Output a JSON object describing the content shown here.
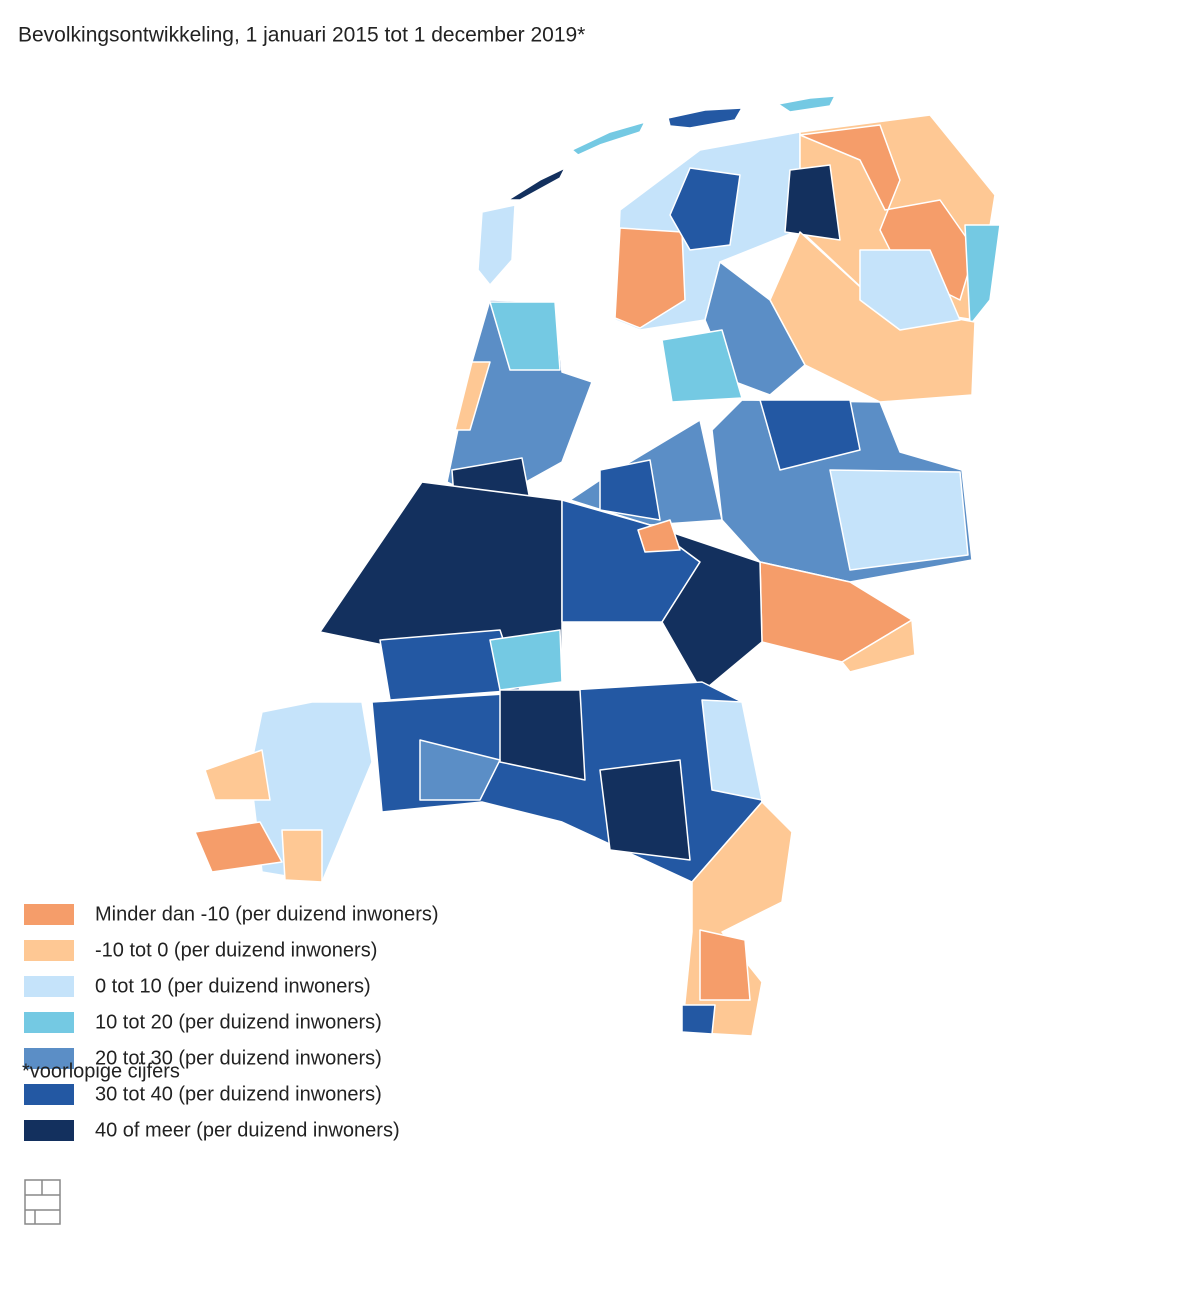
{
  "title": "Bevolkingsontwikkeling, 1 januari 2015 tot 1 december 2019*",
  "legend": {
    "items": [
      {
        "label": "Minder dan -10 (per duizend inwoners)",
        "color": "#f59d6a"
      },
      {
        "label": "-10 tot 0 (per duizend inwoners)",
        "color": "#fec894"
      },
      {
        "label": "0 tot 10 (per duizend inwoners)",
        "color": "#c5e3fa"
      },
      {
        "label": "10 tot 20 (per duizend inwoners)",
        "color": "#74c9e3"
      },
      {
        "label": "20 tot 30 (per duizend inwoners)",
        "color": "#5b8ec6"
      },
      {
        "label": "30 tot 40 (per duizend inwoners)",
        "color": "#2358a3"
      },
      {
        "label": "40 of meer (per duizend inwoners)",
        "color": "#13305e"
      }
    ]
  },
  "footnote": "*voorlopige cijfers"
}
